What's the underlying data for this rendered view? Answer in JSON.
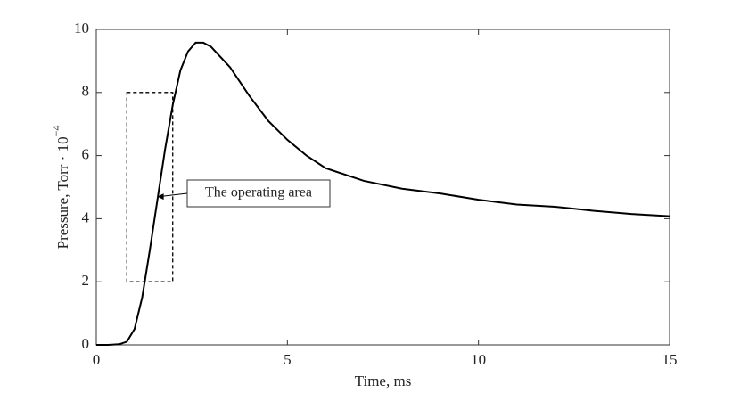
{
  "chart_data": {
    "type": "line",
    "xlabel": "Time, ms",
    "ylabel": {
      "text": "Pressure, Torr · 10",
      "superscript": "−4"
    },
    "x": [
      0,
      0.3,
      0.6,
      0.8,
      1.0,
      1.2,
      1.4,
      1.6,
      1.8,
      2.0,
      2.2,
      2.4,
      2.6,
      2.8,
      3.0,
      3.5,
      4.0,
      4.5,
      5.0,
      5.5,
      6.0,
      7.0,
      8.0,
      9.0,
      10,
      11,
      12,
      13,
      14,
      15
    ],
    "values": [
      0,
      0,
      0.02,
      0.1,
      0.5,
      1.5,
      3.0,
      4.6,
      6.2,
      7.6,
      8.7,
      9.3,
      9.58,
      9.58,
      9.45,
      8.8,
      7.9,
      7.1,
      6.5,
      6.0,
      5.6,
      5.2,
      4.95,
      4.8,
      4.6,
      4.45,
      4.38,
      4.25,
      4.15,
      4.08
    ],
    "color": "#000000",
    "xlim": [
      0,
      15
    ],
    "xticks": [
      0,
      5,
      10,
      15
    ],
    "ylim": [
      0,
      10
    ],
    "yticks": [
      0,
      2,
      4,
      6,
      8,
      10
    ],
    "annotation": {
      "text": "The operating area",
      "region": {
        "x": [
          0.8,
          2.0
        ],
        "y": [
          2,
          8
        ]
      },
      "arrow": [
        1.6,
        4.7
      ]
    }
  }
}
